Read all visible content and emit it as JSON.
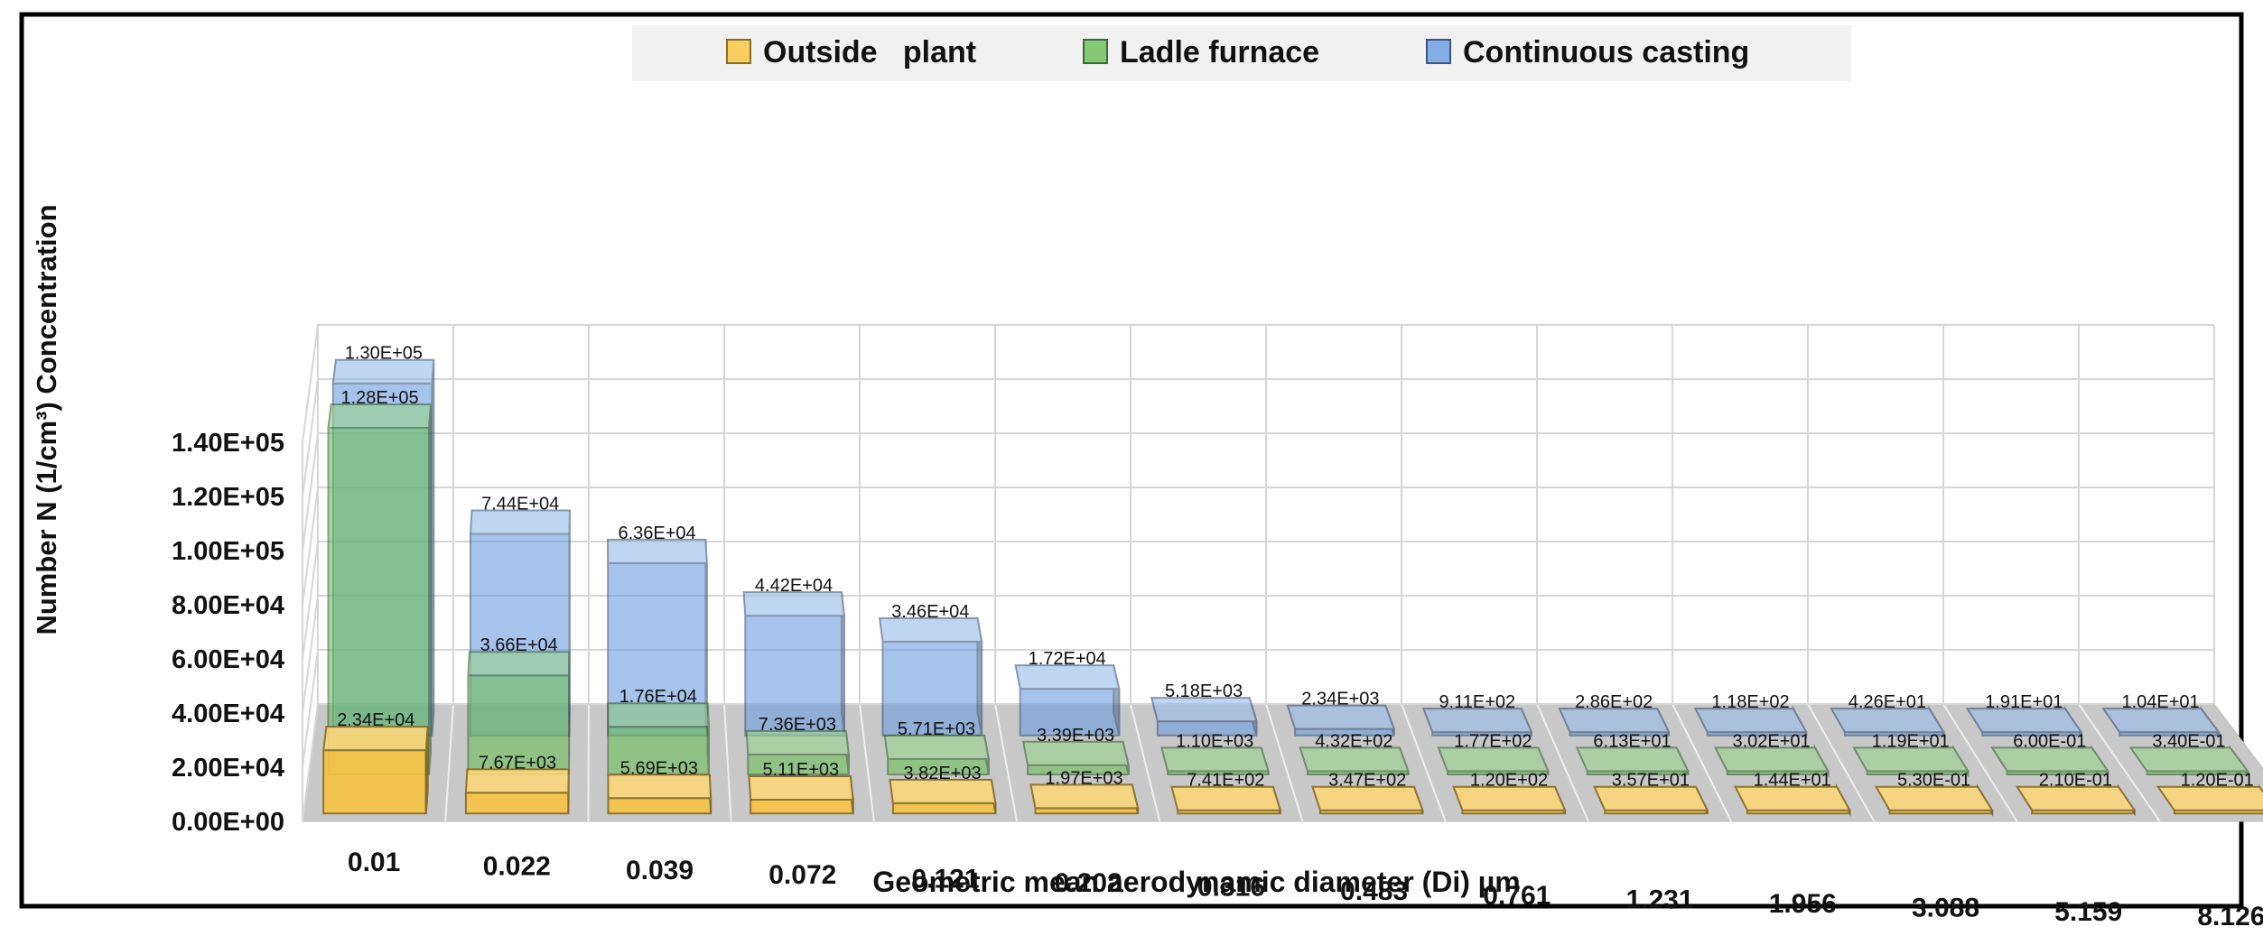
{
  "chart_data": {
    "type": "bar",
    "title": "",
    "xlabel": "Geometric mean aerodynamic diameter (Di) µm",
    "ylabel": "Number N (1/cm³) Concentration",
    "ylim": [
      0,
      140000
    ],
    "y_ticks": [
      "0.00E+00",
      "2.00E+04",
      "4.00E+04",
      "6.00E+04",
      "8.00E+04",
      "1.00E+05",
      "1.20E+05",
      "1.40E+05"
    ],
    "y_tick_values": [
      0,
      20000,
      40000,
      60000,
      80000,
      100000,
      120000,
      140000
    ],
    "grid": true,
    "legend_position": "top",
    "categories": [
      "0.01",
      "0.022",
      "0.039",
      "0.072",
      "0.121",
      "0.202",
      "0.316",
      "0.483",
      "0.761",
      "1.231",
      "1.956",
      "3.088",
      "5.159",
      "8.126"
    ],
    "series": [
      {
        "name": "Outside   plant",
        "color": "#f8c443",
        "values": [
          23400,
          7670,
          5690,
          5110,
          3820,
          1970,
          741,
          347,
          120,
          35.7,
          14.4,
          0.53,
          0.21,
          0.12
        ],
        "labels": [
          "2.34E+04",
          "7.67E+03",
          "5.69E+03",
          "5.11E+03",
          "3.82E+03",
          "1.97E+03",
          "7.41E+02",
          "3.47E+02",
          "1.20E+02",
          "3.57E+01",
          "1.44E+01",
          "5.30E-01",
          "2.10E-01",
          "1.20E-01"
        ]
      },
      {
        "name": "Ladle furnace",
        "color": "#6fbf5f",
        "values": [
          128000,
          36600,
          17600,
          7360,
          5710,
          3390,
          1100,
          432,
          177,
          61.3,
          30.2,
          11.9,
          0.6,
          0.34
        ],
        "labels": [
          "1.28E+05",
          "3.66E+04",
          "1.76E+04",
          "7.36E+03",
          "5.71E+03",
          "3.39E+03",
          "1.10E+03",
          "4.32E+02",
          "1.77E+02",
          "6.13E+01",
          "3.02E+01",
          "1.19E+01",
          "6.00E-01",
          "3.40E-01"
        ]
      },
      {
        "name": "Continuous casting",
        "color": "#6f9fe0",
        "values": [
          130000,
          74400,
          63600,
          44200,
          34600,
          17200,
          5180,
          2340,
          911,
          286,
          118,
          42.6,
          19.1,
          10.4
        ],
        "labels": [
          "1.30E+05",
          "7.44E+04",
          "6.36E+04",
          "4.42E+04",
          "3.46E+04",
          "1.72E+04",
          "5.18E+03",
          "2.34E+03",
          "9.11E+02",
          "2.86E+02",
          "1.18E+02",
          "4.26E+01",
          "1.91E+01",
          "1.04E+01"
        ]
      }
    ]
  }
}
